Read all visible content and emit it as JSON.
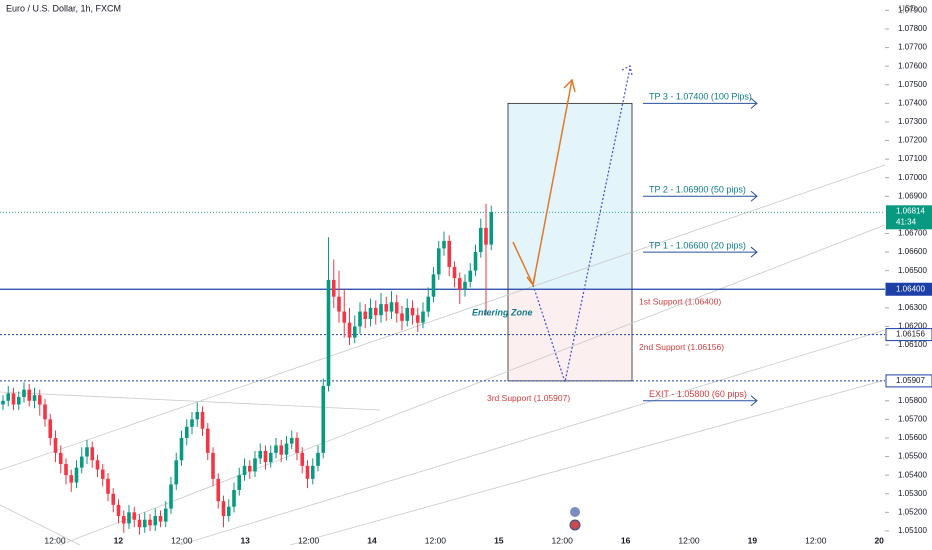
{
  "header": {
    "title": "Euro / U.S. Dollar, 1h, FXCM",
    "currency": "USD"
  },
  "chart_data": {
    "type": "candlestick",
    "up_color": "#089981",
    "down_color": "#f23645",
    "ohlc": [
      [
        1.0578,
        1.0583,
        1.0575,
        1.058
      ],
      [
        1.058,
        1.0588,
        1.0577,
        1.0584
      ],
      [
        1.0584,
        1.0587,
        1.0575,
        1.0578
      ],
      [
        1.0578,
        1.0585,
        1.0575,
        1.0582
      ],
      [
        1.0582,
        1.059,
        1.0579,
        1.0586
      ],
      [
        1.0586,
        1.0589,
        1.0577,
        1.058
      ],
      [
        1.058,
        1.0587,
        1.0576,
        1.0583
      ],
      [
        1.0583,
        1.0586,
        1.0572,
        1.0578
      ],
      [
        1.0578,
        1.0581,
        1.0566,
        1.057
      ],
      [
        1.057,
        1.0573,
        1.0556,
        1.056
      ],
      [
        1.056,
        1.0564,
        1.0547,
        1.0552
      ],
      [
        1.0552,
        1.0556,
        1.0541,
        1.0546
      ],
      [
        1.0546,
        1.0549,
        1.0535,
        1.054
      ],
      [
        1.054,
        1.0543,
        1.0531,
        1.0536
      ],
      [
        1.0536,
        1.0548,
        1.0533,
        1.0544
      ],
      [
        1.0544,
        1.0555,
        1.0541,
        1.055
      ],
      [
        1.055,
        1.0559,
        1.0546,
        1.0555
      ],
      [
        1.0555,
        1.0558,
        1.0544,
        1.0548
      ],
      [
        1.0548,
        1.0551,
        1.0539,
        1.0543
      ],
      [
        1.0543,
        1.0546,
        1.0534,
        1.0538
      ],
      [
        1.0538,
        1.0541,
        1.0526,
        1.053
      ],
      [
        1.053,
        1.0533,
        1.052,
        1.0524
      ],
      [
        1.0524,
        1.0527,
        1.0514,
        1.0518
      ],
      [
        1.0518,
        1.0521,
        1.0509,
        1.0514
      ],
      [
        1.0514,
        1.0524,
        1.0511,
        1.052
      ],
      [
        1.052,
        1.0523,
        1.0512,
        1.0516
      ],
      [
        1.0516,
        1.0519,
        1.0508,
        1.0512
      ],
      [
        1.0512,
        1.052,
        1.0509,
        1.0516
      ],
      [
        1.0516,
        1.0519,
        1.051,
        1.0513
      ],
      [
        1.0513,
        1.0522,
        1.051,
        1.0518
      ],
      [
        1.0518,
        1.0521,
        1.0512,
        1.0515
      ],
      [
        1.0515,
        1.0526,
        1.0512,
        1.0522
      ],
      [
        1.0522,
        1.0539,
        1.0519,
        1.0535
      ],
      [
        1.0535,
        1.0552,
        1.0532,
        1.0548
      ],
      [
        1.0548,
        1.0564,
        1.0545,
        1.056
      ],
      [
        1.056,
        1.057,
        1.0556,
        1.0566
      ],
      [
        1.0566,
        1.0574,
        1.0562,
        1.057
      ],
      [
        1.057,
        1.0579,
        1.0566,
        1.0574
      ],
      [
        1.0574,
        1.0577,
        1.0561,
        1.0565
      ],
      [
        1.0565,
        1.0568,
        1.0548,
        1.0552
      ],
      [
        1.0552,
        1.0555,
        1.0534,
        1.0538
      ],
      [
        1.0538,
        1.0541,
        1.0522,
        1.0526
      ],
      [
        1.0526,
        1.0529,
        1.0512,
        1.0518
      ],
      [
        1.0518,
        1.0527,
        1.0515,
        1.0523
      ],
      [
        1.0523,
        1.0536,
        1.052,
        1.0532
      ],
      [
        1.0532,
        1.0544,
        1.0529,
        1.054
      ],
      [
        1.054,
        1.0549,
        1.0537,
        1.0545
      ],
      [
        1.0545,
        1.0548,
        1.0538,
        1.0542
      ],
      [
        1.0542,
        1.0553,
        1.0539,
        1.0549
      ],
      [
        1.0549,
        1.0557,
        1.0546,
        1.0553
      ],
      [
        1.0553,
        1.0556,
        1.0543,
        1.0547
      ],
      [
        1.0547,
        1.0556,
        1.0544,
        1.0552
      ],
      [
        1.0552,
        1.056,
        1.0549,
        1.0556
      ],
      [
        1.0556,
        1.0559,
        1.0547,
        1.0551
      ],
      [
        1.0551,
        1.0561,
        1.0548,
        1.0557
      ],
      [
        1.0557,
        1.0564,
        1.0554,
        1.056
      ],
      [
        1.056,
        1.0563,
        1.0548,
        1.0552
      ],
      [
        1.0552,
        1.0555,
        1.0541,
        1.0545
      ],
      [
        1.0545,
        1.0548,
        1.0533,
        1.0538
      ],
      [
        1.0538,
        1.0549,
        1.0535,
        1.0545
      ],
      [
        1.0545,
        1.0556,
        1.0542,
        1.0552
      ],
      [
        1.0552,
        1.0592,
        1.0549,
        1.0588
      ],
      [
        1.0588,
        1.0668,
        1.0585,
        1.0645
      ],
      [
        1.0645,
        1.0656,
        1.063,
        1.0636
      ],
      [
        1.0636,
        1.065,
        1.0622,
        1.0628
      ],
      [
        1.0628,
        1.064,
        1.0614,
        1.0622
      ],
      [
        1.0622,
        1.063,
        1.061,
        1.0614
      ],
      [
        1.0614,
        1.0626,
        1.0611,
        1.062
      ],
      [
        1.062,
        1.0633,
        1.0616,
        1.0628
      ],
      [
        1.0628,
        1.0632,
        1.0619,
        1.0624
      ],
      [
        1.0624,
        1.0635,
        1.062,
        1.063
      ],
      [
        1.063,
        1.0634,
        1.0621,
        1.0626
      ],
      [
        1.0626,
        1.0638,
        1.0622,
        1.0632
      ],
      [
        1.0632,
        1.0636,
        1.0623,
        1.0628
      ],
      [
        1.0628,
        1.0639,
        1.0624,
        1.0633
      ],
      [
        1.0633,
        1.0637,
        1.0622,
        1.0627
      ],
      [
        1.0627,
        1.0631,
        1.0618,
        1.0623
      ],
      [
        1.0623,
        1.0635,
        1.062,
        1.063
      ],
      [
        1.063,
        1.0634,
        1.0621,
        1.0626
      ],
      [
        1.0626,
        1.063,
        1.0617,
        1.0622
      ],
      [
        1.0622,
        1.0633,
        1.0619,
        1.0628
      ],
      [
        1.0628,
        1.0641,
        1.0625,
        1.0636
      ],
      [
        1.0636,
        1.0652,
        1.0633,
        1.0648
      ],
      [
        1.0648,
        1.0666,
        1.0645,
        1.0662
      ],
      [
        1.0662,
        1.0671,
        1.0658,
        1.0666
      ],
      [
        1.0666,
        1.0669,
        1.0647,
        1.0652
      ],
      [
        1.0652,
        1.0655,
        1.0641,
        1.0646
      ],
      [
        1.0646,
        1.0649,
        1.0632,
        1.064
      ],
      [
        1.064,
        1.0648,
        1.0636,
        1.0644
      ],
      [
        1.0644,
        1.0654,
        1.0641,
        1.065
      ],
      [
        1.065,
        1.0664,
        1.0647,
        1.066
      ],
      [
        1.066,
        1.0678,
        1.0657,
        1.0673
      ],
      [
        1.0673,
        1.0686,
        1.0626,
        1.0664
      ],
      [
        1.0664,
        1.0685,
        1.0661,
        1.06814
      ]
    ],
    "ylim": [
      1.05078,
      1.07956
    ],
    "yticks": [
      {
        "value": 1.079,
        "label": "1.07900"
      },
      {
        "value": 1.078,
        "label": "1.07800"
      },
      {
        "value": 1.077,
        "label": "1.07700"
      },
      {
        "value": 1.076,
        "label": "1.07600"
      },
      {
        "value": 1.075,
        "label": "1.07500"
      },
      {
        "value": 1.074,
        "label": "1.07400"
      },
      {
        "value": 1.073,
        "label": "1.07300"
      },
      {
        "value": 1.072,
        "label": "1.07200"
      },
      {
        "value": 1.071,
        "label": "1.07100"
      },
      {
        "value": 1.07,
        "label": "1.07000"
      },
      {
        "value": 1.069,
        "label": "1.06900"
      },
      {
        "value": 1.067,
        "label": "1.06700"
      },
      {
        "value": 1.066,
        "label": "1.06600"
      },
      {
        "value": 1.065,
        "label": "1.06500"
      },
      {
        "value": 1.063,
        "label": "1.06300"
      },
      {
        "value": 1.062,
        "label": "1.06200"
      },
      {
        "value": 1.061,
        "label": "1.06100"
      },
      {
        "value": 1.058,
        "label": "1.05800"
      },
      {
        "value": 1.057,
        "label": "1.05700"
      },
      {
        "value": 1.056,
        "label": "1.05600"
      },
      {
        "value": 1.055,
        "label": "1.05500"
      },
      {
        "value": 1.054,
        "label": "1.05400"
      },
      {
        "value": 1.053,
        "label": "1.05300"
      },
      {
        "value": 1.052,
        "label": "1.05200"
      },
      {
        "value": 1.051,
        "label": "1.05100"
      }
    ],
    "xticks": [
      "12:00",
      "12",
      "12:00",
      "13",
      "12:00",
      "14",
      "12:00",
      "15",
      "12:00",
      "16",
      "12:00",
      "19",
      "12:00",
      "20"
    ],
    "price_lines": [
      {
        "value": 1.064,
        "label": "1.06400",
        "style": "solid",
        "color": "#1c3fa8"
      },
      {
        "value": 1.06156,
        "label": "1.06156",
        "style": "dotted",
        "color": "#1c3fa8"
      },
      {
        "value": 1.05907,
        "label": "1.05907",
        "style": "dotted",
        "color": "#1c3fa8"
      }
    ],
    "last_price": {
      "value": 1.06814,
      "label": "1.06814",
      "countdown": "41:34",
      "color": "#089981"
    },
    "zones": [
      {
        "top": 1.074,
        "bottom": 1.064,
        "color": "#e3f4fa"
      },
      {
        "top": 1.064,
        "bottom": 1.05907,
        "color": "#fcefef"
      }
    ],
    "targets": [
      {
        "text": "TP 3 - 1.07400 (100 Pips)",
        "value": 1.074,
        "color": "#0f7c8a"
      },
      {
        "text": "TP 2 - 1.06900 (50 pips)",
        "value": 1.069,
        "color": "#0f7c8a"
      },
      {
        "text": "TP 1 - 1.06600 (20 pips)",
        "value": 1.066,
        "color": "#0f7c8a"
      },
      {
        "text": "EXIT - 1.05800 (60 pips)",
        "value": 1.058,
        "color": "#d63b3f"
      }
    ],
    "supports": [
      {
        "text": "1st Support (1.06400)",
        "value": 1.064
      },
      {
        "text": "2nd Support (1.06156)",
        "value": 1.06156
      },
      {
        "text": "3rd Support (1.05907)",
        "value": 1.05907
      }
    ],
    "entry_label": "Entering Zone"
  }
}
